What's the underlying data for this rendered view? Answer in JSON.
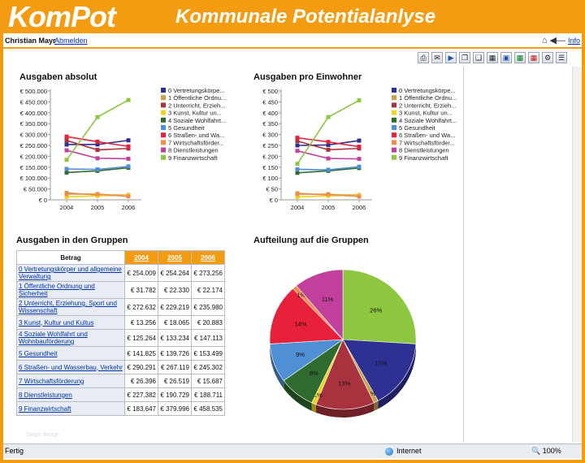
{
  "header": {
    "logo": "KomPot",
    "title": "Kommunale Potentialanlyse"
  },
  "userbar": {
    "user": "Christian Mayr",
    "logout": "Abmelden",
    "info": "Info"
  },
  "icons": {
    "home": "home-icon",
    "back": "back-arrow-icon",
    "toolbar": [
      "print-icon",
      "mail-icon",
      "play-icon",
      "copy-icon",
      "paste-icon",
      "chart-type-icon",
      "window-icon",
      "export-excel-icon",
      "export-pdf-icon",
      "settings-icon"
    ]
  },
  "colors": {
    "accent": "#f39c12",
    "series": [
      "#2e3192",
      "#c8a24a",
      "#a8323e",
      "#ecd51c",
      "#2f6b2f",
      "#4f8fd6",
      "#e8213a",
      "#f28c4b",
      "#c0409b",
      "#8dc63f"
    ]
  },
  "panels": {
    "abs_title": "Ausgaben absolut",
    "pro_title": "Ausgaben pro Einwohner",
    "table_title": "Ausgaben in den Gruppen",
    "pie_title": "Aufteilung auf die Gruppen"
  },
  "legend": [
    "0 Vertretungskörpe...",
    "1 Öffentliche Ordnu...",
    "2 Unterricht, Erzieh...",
    "3 Kunst, Kultur un...",
    "4 Soziale Wohlfahrt...",
    "5 Gesundheit",
    "6 Straßen- und Wa...",
    "7 Wirtschaftsförder...",
    "8 Dienstleistungen",
    "9 Finanzwirtschaft"
  ],
  "table": {
    "header": "Betrag",
    "years": [
      "2004",
      "2005",
      "2006"
    ],
    "rows": [
      {
        "label": "0 Vertretungskörper und allgemeine Verwaltung",
        "values": [
          "€ 254.009",
          "€ 254.264",
          "€ 273.256"
        ]
      },
      {
        "label": "1 Öffentliche Ordnung und Sicherheit",
        "values": [
          "€ 31.782",
          "€ 22.330",
          "€ 22.174"
        ]
      },
      {
        "label": "2 Unterricht, Erziehung, Sport und Wissenschaft",
        "values": [
          "€ 272.632",
          "€ 229.219",
          "€ 235.980"
        ]
      },
      {
        "label": "3 Kunst, Kultur und Kultus",
        "values": [
          "€ 13.256",
          "€ 18.065",
          "€ 20.883"
        ]
      },
      {
        "label": "4 Soziale Wohlfahrt und Wohnbauförderung",
        "values": [
          "€ 125.264",
          "€ 133.234",
          "€ 147.113"
        ]
      },
      {
        "label": "5 Gesundheit",
        "values": [
          "€ 141.825",
          "€ 139.726",
          "€ 153.499"
        ]
      },
      {
        "label": "6 Straßen- und Wasserbau, Verkehr",
        "values": [
          "€ 290.291",
          "€ 267.119",
          "€ 245.302"
        ]
      },
      {
        "label": "7 Wirtschaftsförderung",
        "values": [
          "€ 26.396",
          "€ 26.519",
          "€ 15.687"
        ]
      },
      {
        "label": "8 Dienstleistungen",
        "values": [
          "€ 227.382",
          "€ 190.729",
          "€ 188.711"
        ]
      },
      {
        "label": "9 Finanzwirtschaft",
        "values": [
          "€ 183.647",
          "€ 379.996",
          "€ 458.535"
        ]
      }
    ]
  },
  "chart_data": [
    {
      "type": "line",
      "title": "Ausgaben absolut",
      "x": [
        "2004",
        "2005",
        "2006"
      ],
      "ylim": [
        0,
        500000
      ],
      "yticks": [
        "€ 0",
        "€ 50.000",
        "€ 100.000",
        "€ 150.000",
        "€ 200.000",
        "€ 250.000",
        "€ 300.000",
        "€ 350.000",
        "€ 400.000",
        "€ 450.000",
        "€ 500.000"
      ],
      "legend_position": "right",
      "series": [
        {
          "name": "0 Vertretungskörpe...",
          "values": [
            254009,
            254264,
            273256
          ]
        },
        {
          "name": "1 Öffentliche Ordnu...",
          "values": [
            31782,
            22330,
            22174
          ]
        },
        {
          "name": "2 Unterricht, Erzieh...",
          "values": [
            272632,
            229219,
            235980
          ]
        },
        {
          "name": "3 Kunst, Kultur un...",
          "values": [
            13256,
            18065,
            20883
          ]
        },
        {
          "name": "4 Soziale Wohlfahrt...",
          "values": [
            125264,
            133234,
            147113
          ]
        },
        {
          "name": "5 Gesundheit",
          "values": [
            141825,
            139726,
            153499
          ]
        },
        {
          "name": "6 Straßen- und Wa...",
          "values": [
            290291,
            267119,
            245302
          ]
        },
        {
          "name": "7 Wirtschaftsförder...",
          "values": [
            26396,
            26519,
            15687
          ]
        },
        {
          "name": "8 Dienstleistungen",
          "values": [
            227382,
            190729,
            188711
          ]
        },
        {
          "name": "9 Finanzwirtschaft",
          "values": [
            183647,
            379996,
            458535
          ]
        }
      ]
    },
    {
      "type": "line",
      "title": "Ausgaben pro Einwohner",
      "x": [
        "2004",
        "2005",
        "2006"
      ],
      "ylim": [
        0,
        500
      ],
      "yticks": [
        "€ 0",
        "€ 50",
        "€ 100",
        "€ 150",
        "€ 200",
        "€ 250",
        "€ 300",
        "€ 350",
        "€ 400",
        "€ 450",
        "€ 500"
      ],
      "legend_position": "right",
      "series": [
        {
          "name": "0 Vertretungskörpe...",
          "values": [
            250,
            252,
            272
          ]
        },
        {
          "name": "1 Öffentliche Ordnu...",
          "values": [
            30,
            22,
            22
          ]
        },
        {
          "name": "2 Unterricht, Erzieh...",
          "values": [
            270,
            230,
            236
          ]
        },
        {
          "name": "3 Kunst, Kultur un...",
          "values": [
            13,
            18,
            20
          ]
        },
        {
          "name": "4 Soziale Wohlfahrt...",
          "values": [
            124,
            133,
            146
          ]
        },
        {
          "name": "5 Gesundheit",
          "values": [
            140,
            138,
            152
          ]
        },
        {
          "name": "6 Straßen- und Wa...",
          "values": [
            285,
            266,
            244
          ]
        },
        {
          "name": "7 Wirtschaftsförder...",
          "values": [
            26,
            26,
            15
          ]
        },
        {
          "name": "8 Dienstleistungen",
          "values": [
            225,
            190,
            188
          ]
        },
        {
          "name": "9 Finanzwirtschaft",
          "values": [
            165,
            380,
            457
          ]
        }
      ]
    },
    {
      "type": "pie",
      "title": "Aufteilung auf die Gruppen",
      "slices": [
        {
          "name": "9 Finanzwirtschaft",
          "value": 26,
          "label": "26%"
        },
        {
          "name": "0 Vertretungskörpe...",
          "value": 16,
          "label": "16%"
        },
        {
          "name": "1 Öffentliche Ordnu...",
          "value": 1,
          "label": "1%"
        },
        {
          "name": "2 Unterricht, Erzieh...",
          "value": 13,
          "label": "13%"
        },
        {
          "name": "3 Kunst, Kultur un...",
          "value": 1,
          "label": "1%"
        },
        {
          "name": "4 Soziale Wohlfahrt...",
          "value": 8,
          "label": "8%"
        },
        {
          "name": "5 Gesundheit",
          "value": 9,
          "label": "9%"
        },
        {
          "name": "6 Straßen- und Wa...",
          "value": 14,
          "label": "14%"
        },
        {
          "name": "7 Wirtschaftsförder...",
          "value": 1,
          "label": "1%"
        },
        {
          "name": "8 Dienstleistungen",
          "value": 11,
          "label": "11%"
        }
      ]
    }
  ],
  "statusbar": {
    "status": "Fertig",
    "zone": "Internet",
    "zoom": "100%"
  },
  "footer_faint": "Stage design"
}
